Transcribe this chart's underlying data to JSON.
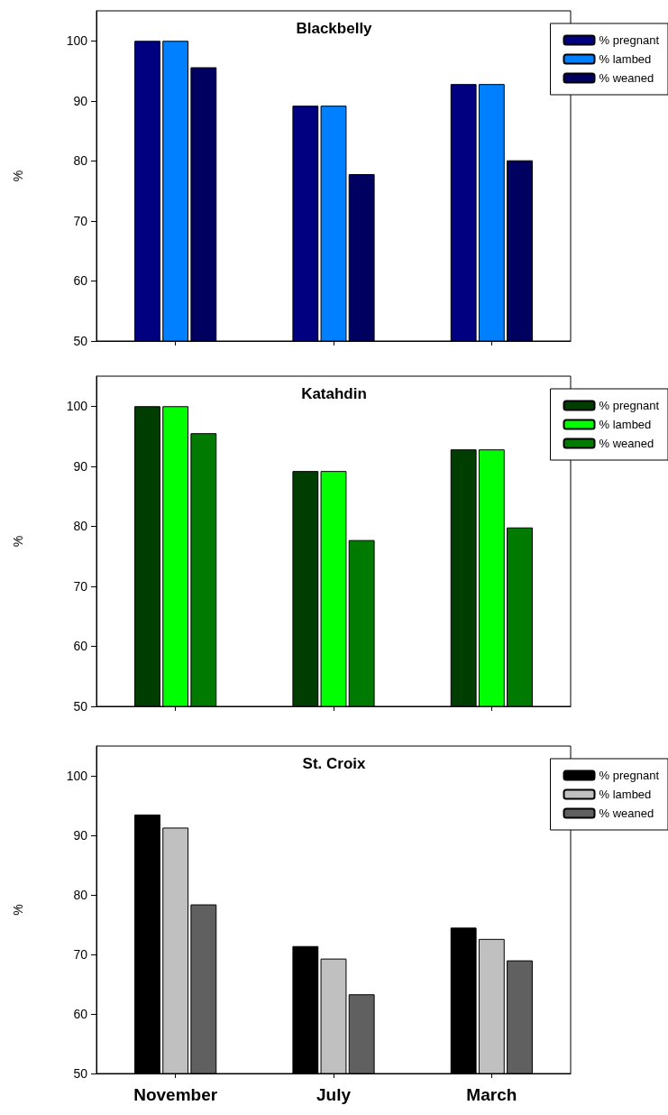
{
  "chart_data": [
    {
      "type": "bar",
      "title": "Blackbelly",
      "ylabel": "%",
      "categories": [
        null,
        null,
        null
      ],
      "ylim": [
        50,
        105
      ],
      "yticks": [
        50,
        60,
        70,
        80,
        90,
        100
      ],
      "grid": false,
      "legend": "top right",
      "tick_labels": "y",
      "series": [
        {
          "name": "% pregnant",
          "color": "#000080",
          "values": [
            100,
            89.2,
            92.8
          ]
        },
        {
          "name": "% lambed",
          "color": "#0080ff",
          "values": [
            100,
            89.2,
            92.8
          ]
        },
        {
          "name": "% weaned",
          "color": "#000060",
          "values": [
            95.6,
            77.8,
            80.1
          ]
        }
      ]
    },
    {
      "type": "bar",
      "title": "Katahdin",
      "ylabel": "%",
      "categories": [
        null,
        null,
        null
      ],
      "ylim": [
        50,
        105
      ],
      "yticks": [
        50,
        60,
        70,
        80,
        90,
        100
      ],
      "grid": false,
      "legend": "top right",
      "tick_labels": "y",
      "series": [
        {
          "name": "% pregnant",
          "color": "#003d00",
          "values": [
            100,
            89.2,
            92.8
          ]
        },
        {
          "name": "% lambed",
          "color": "#00ff00",
          "values": [
            100,
            89.2,
            92.8
          ]
        },
        {
          "name": "% weaned",
          "color": "#007a00",
          "values": [
            95.5,
            77.7,
            79.8
          ]
        }
      ]
    },
    {
      "type": "bar",
      "title": "St. Croix",
      "ylabel": "%",
      "categories": [
        "November",
        "July",
        "March"
      ],
      "ylim": [
        50,
        105
      ],
      "yticks": [
        50,
        60,
        70,
        80,
        90,
        100
      ],
      "grid": false,
      "legend": "top right",
      "series": [
        {
          "name": "% pregnant",
          "color": "#000000",
          "values": [
            93.5,
            71.4,
            74.5
          ]
        },
        {
          "name": "% lambed",
          "color": "#c0c0c0",
          "values": [
            91.3,
            69.3,
            72.6
          ]
        },
        {
          "name": "% weaned",
          "color": "#606060",
          "values": [
            78.4,
            63.3,
            69.0
          ]
        }
      ]
    }
  ]
}
